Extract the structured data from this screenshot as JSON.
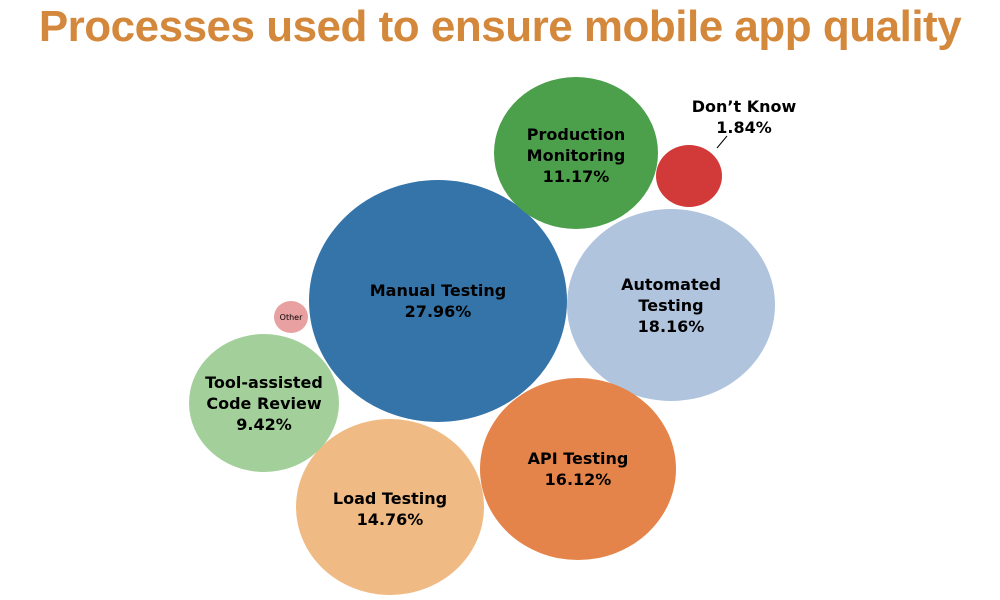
{
  "title": "Processes used to ensure mobile app quality",
  "colors": {
    "title": "#D4883C"
  },
  "chart_data": {
    "type": "bubble",
    "title": "Processes used to ensure mobile app quality",
    "items": [
      {
        "label": "Manual Testing",
        "value": 27.96,
        "value_text": "27.96%",
        "color": "#3574A8"
      },
      {
        "label": "Automated Testing",
        "value": 18.16,
        "value_text": "18.16%",
        "color": "#B0C4DE"
      },
      {
        "label": "API Testing",
        "value": 16.12,
        "value_text": "16.12%",
        "color": "#E5844A"
      },
      {
        "label": "Load Testing",
        "value": 14.76,
        "value_text": "14.76%",
        "color": "#F0BA84"
      },
      {
        "label": "Production Monitoring",
        "value": 11.17,
        "value_text": "11.17%",
        "color": "#4CA04B"
      },
      {
        "label": "Tool-assisted Code Review",
        "value": 9.42,
        "value_text": "9.42%",
        "color": "#A3D09A"
      },
      {
        "label": "Don’t Know",
        "value": 1.84,
        "value_text": "1.84%",
        "color": "#D13A38"
      },
      {
        "label": "Other",
        "value": null,
        "value_text": "",
        "color": "#E8A0A0"
      }
    ]
  }
}
